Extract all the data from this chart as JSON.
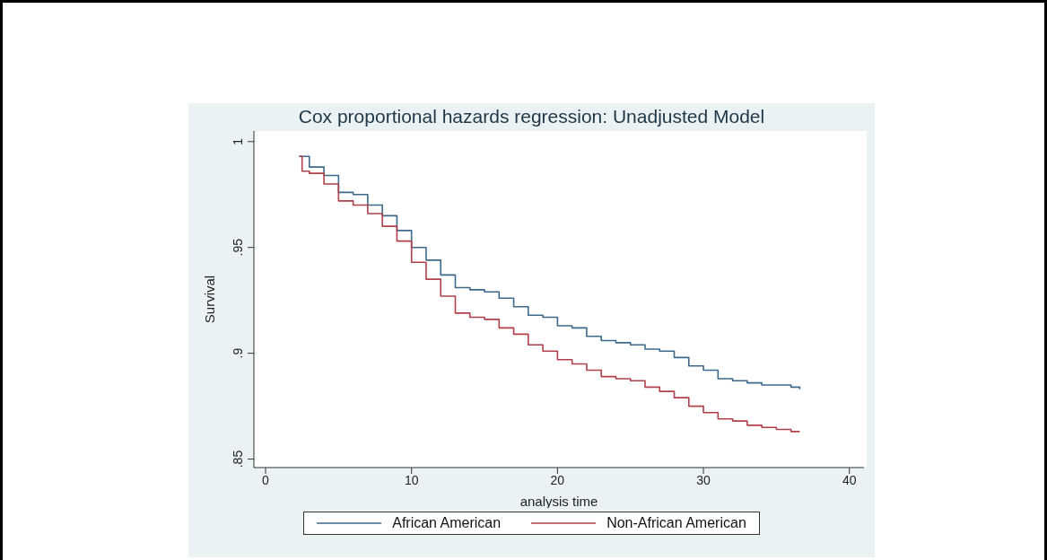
{
  "chart_data": {
    "type": "step",
    "title": "Cox proportional hazards regression: Unadjusted Model",
    "xlabel": "analysis time",
    "ylabel": "Survival",
    "xlim": [
      -0.8,
      41
    ],
    "xticks": [
      0,
      10,
      20,
      30,
      40
    ],
    "ylim": [
      0.846,
      1.005
    ],
    "yticks": [
      {
        "value": 0.85,
        "label": ".85"
      },
      {
        "value": 0.9,
        "label": ".9"
      },
      {
        "value": 0.95,
        "label": ".95"
      },
      {
        "value": 1,
        "label": "1"
      }
    ],
    "grid": "y",
    "legend": "bottom",
    "line_style": "solid",
    "series": [
      {
        "name": "African American",
        "color": "#3d6a8c",
        "x": [
          2.3,
          3,
          4,
          5,
          6,
          7,
          8,
          9,
          10,
          11,
          12,
          13,
          14,
          15,
          16,
          17,
          18,
          19,
          20,
          21,
          22,
          23,
          24,
          25,
          26,
          27,
          28,
          29,
          30,
          31,
          32,
          33,
          34,
          35,
          36,
          36.6
        ],
        "values": [
          0.993,
          0.988,
          0.984,
          0.976,
          0.975,
          0.97,
          0.965,
          0.958,
          0.95,
          0.944,
          0.937,
          0.931,
          0.93,
          0.929,
          0.926,
          0.922,
          0.918,
          0.917,
          0.913,
          0.912,
          0.908,
          0.906,
          0.905,
          0.904,
          0.902,
          0.901,
          0.898,
          0.894,
          0.892,
          0.888,
          0.887,
          0.886,
          0.885,
          0.885,
          0.884,
          0.883
        ]
      },
      {
        "name": "Non-African American",
        "color": "#b0404a",
        "x": [
          2.3,
          2.5,
          3,
          4,
          5,
          6,
          7,
          8,
          9,
          10,
          11,
          12,
          13,
          14,
          15,
          16,
          17,
          18,
          19,
          20,
          21,
          22,
          23,
          24,
          25,
          26,
          27,
          28,
          29,
          30,
          31,
          32,
          33,
          34,
          35,
          36,
          36.6
        ],
        "values": [
          0.993,
          0.986,
          0.985,
          0.98,
          0.972,
          0.97,
          0.966,
          0.96,
          0.953,
          0.943,
          0.935,
          0.927,
          0.919,
          0.917,
          0.916,
          0.912,
          0.909,
          0.904,
          0.901,
          0.897,
          0.895,
          0.892,
          0.889,
          0.888,
          0.887,
          0.884,
          0.882,
          0.879,
          0.875,
          0.872,
          0.869,
          0.868,
          0.866,
          0.865,
          0.864,
          0.863,
          0.863
        ]
      }
    ]
  }
}
